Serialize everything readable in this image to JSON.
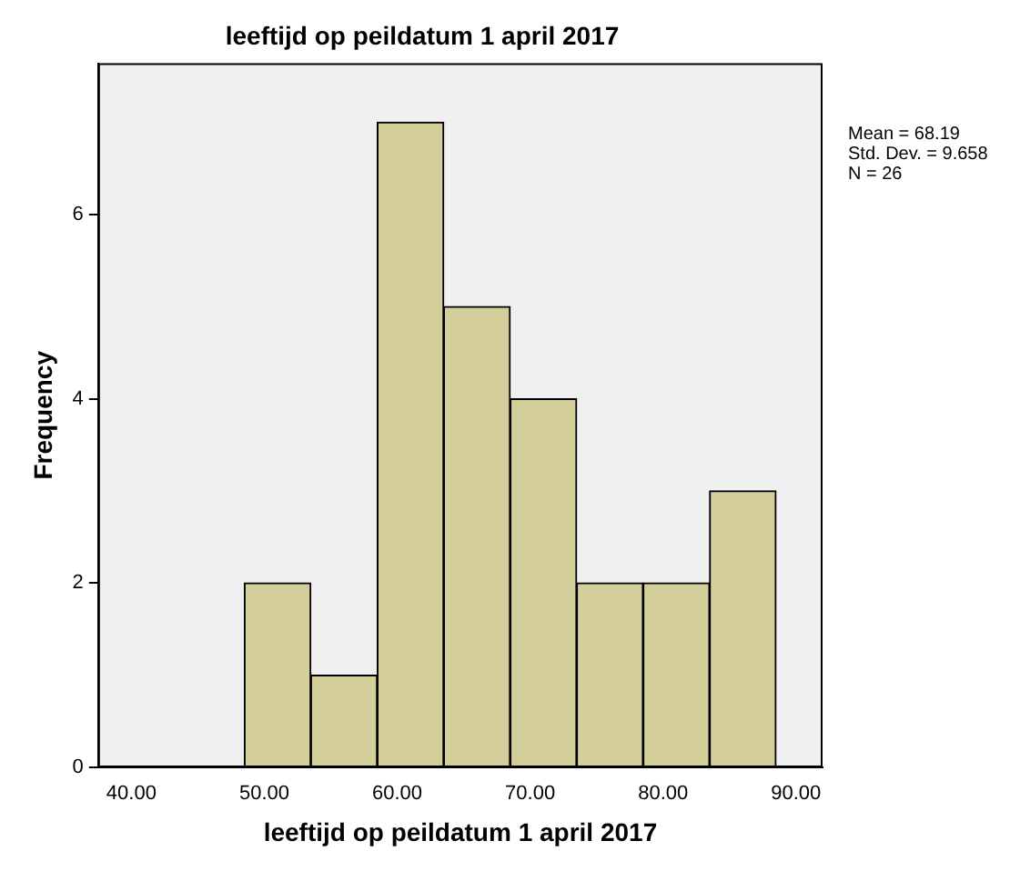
{
  "chart_data": {
    "type": "histogram",
    "title": "leeftijd op peildatum 1 april 2017",
    "xlabel": "leeftijd op peildatum 1 april 2017",
    "ylabel": "Frequency",
    "bins": [
      48.5,
      53.5,
      58.5,
      63.5,
      68.5,
      73.5,
      78.5,
      83.5,
      88.5
    ],
    "values": [
      2,
      1,
      7,
      5,
      4,
      2,
      2,
      3
    ],
    "color": "#d3ce9a",
    "xlim": [
      37.5,
      92
    ],
    "xticks": [
      {
        "value": 40,
        "label": "40.00"
      },
      {
        "value": 50,
        "label": "50.00"
      },
      {
        "value": 60,
        "label": "60.00"
      },
      {
        "value": 70,
        "label": "70.00"
      },
      {
        "value": 80,
        "label": "80.00"
      },
      {
        "value": 90,
        "label": "90.00"
      }
    ],
    "ylim": [
      0,
      7.64
    ],
    "yticks": [
      0,
      2,
      4,
      6
    ],
    "grid": false,
    "legend": false,
    "annotations": [
      "Mean = 68.19",
      "Std. Dev. = 9.658",
      "N = 26"
    ]
  }
}
